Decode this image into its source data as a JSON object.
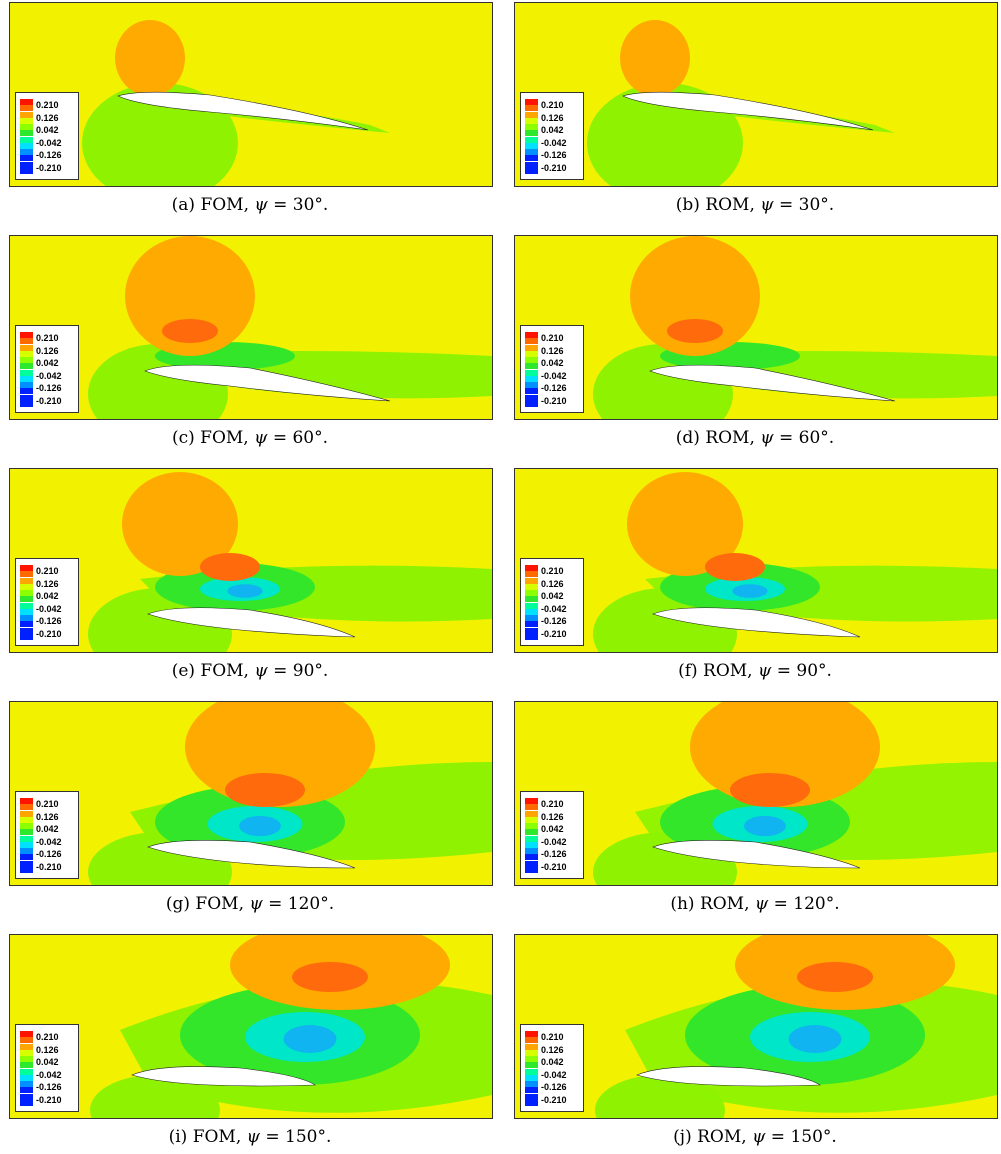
{
  "legend": {
    "labels": [
      "0.210",
      "0.126",
      "0.042",
      "-0.042",
      "-0.126",
      "-0.210"
    ],
    "colors": [
      "#ff1400",
      "#ff6a00",
      "#ffa500",
      "#d6ff00",
      "#8cff00",
      "#2ee82e",
      "#00ff9a",
      "#00e0ff",
      "#0090ff",
      "#0020ff"
    ]
  },
  "colors": {
    "background": "#f2f200",
    "high_outer": "#ffaa00",
    "high_inner": "#ff6a0c",
    "low_outer": "#8ef200",
    "low_mid": "#33e62a",
    "low_deep": "#00e6c8",
    "low_core": "#10b4f0",
    "airfoil": "#ffffff"
  },
  "panels": [
    {
      "id": "a",
      "caption_prefix": "(a) FOM, ",
      "psi": "ψ",
      "caption_value": " = 30°."
    },
    {
      "id": "b",
      "caption_prefix": "(b) ROM, ",
      "psi": "ψ",
      "caption_value": " = 30°."
    },
    {
      "id": "c",
      "caption_prefix": "(c) FOM, ",
      "psi": "ψ",
      "caption_value": " = 60°."
    },
    {
      "id": "d",
      "caption_prefix": "(d) ROM, ",
      "psi": "ψ",
      "caption_value": " = 60°."
    },
    {
      "id": "e",
      "caption_prefix": "(e) FOM, ",
      "psi": "ψ",
      "caption_value": " = 90°."
    },
    {
      "id": "f",
      "caption_prefix": "(f) ROM, ",
      "psi": "ψ",
      "caption_value": " = 90°."
    },
    {
      "id": "g",
      "caption_prefix": "(g) FOM, ",
      "psi": "ψ",
      "caption_value": " = 120°."
    },
    {
      "id": "h",
      "caption_prefix": "(h) ROM, ",
      "psi": "ψ",
      "caption_value": " = 120°."
    },
    {
      "id": "i",
      "caption_prefix": "(i) FOM, ",
      "psi": "ψ",
      "caption_value": " = 150°."
    },
    {
      "id": "j",
      "caption_prefix": "(j) ROM, ",
      "psi": "ψ",
      "caption_value": " = 150°."
    }
  ]
}
